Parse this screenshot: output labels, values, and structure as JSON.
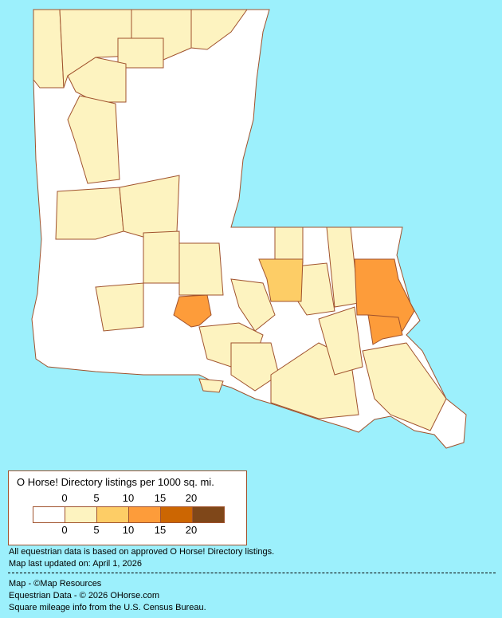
{
  "map": {
    "region": "Louisiana",
    "background_color": "#9cf0fc",
    "border_color": "#a0522d"
  },
  "legend": {
    "title": "O Horse! Directory listings per 1000 sq. mi.",
    "ticks": [
      "0",
      "5",
      "10",
      "15",
      "20"
    ],
    "colors": [
      "#ffffff",
      "#fdf3c0",
      "#fdcd66",
      "#fd9c3a",
      "#cc6602",
      "#7f4719"
    ]
  },
  "notes": {
    "line1": "All equestrian data is based on approved O Horse! Directory listings.",
    "line2": "Map last updated on: April 1, 2026",
    "credit1": "Map - ©Map Resources",
    "credit2": "Equestrian Data - © 2026 OHorse.com",
    "credit3": "Square mileage info from the U.S. Census Bureau."
  }
}
